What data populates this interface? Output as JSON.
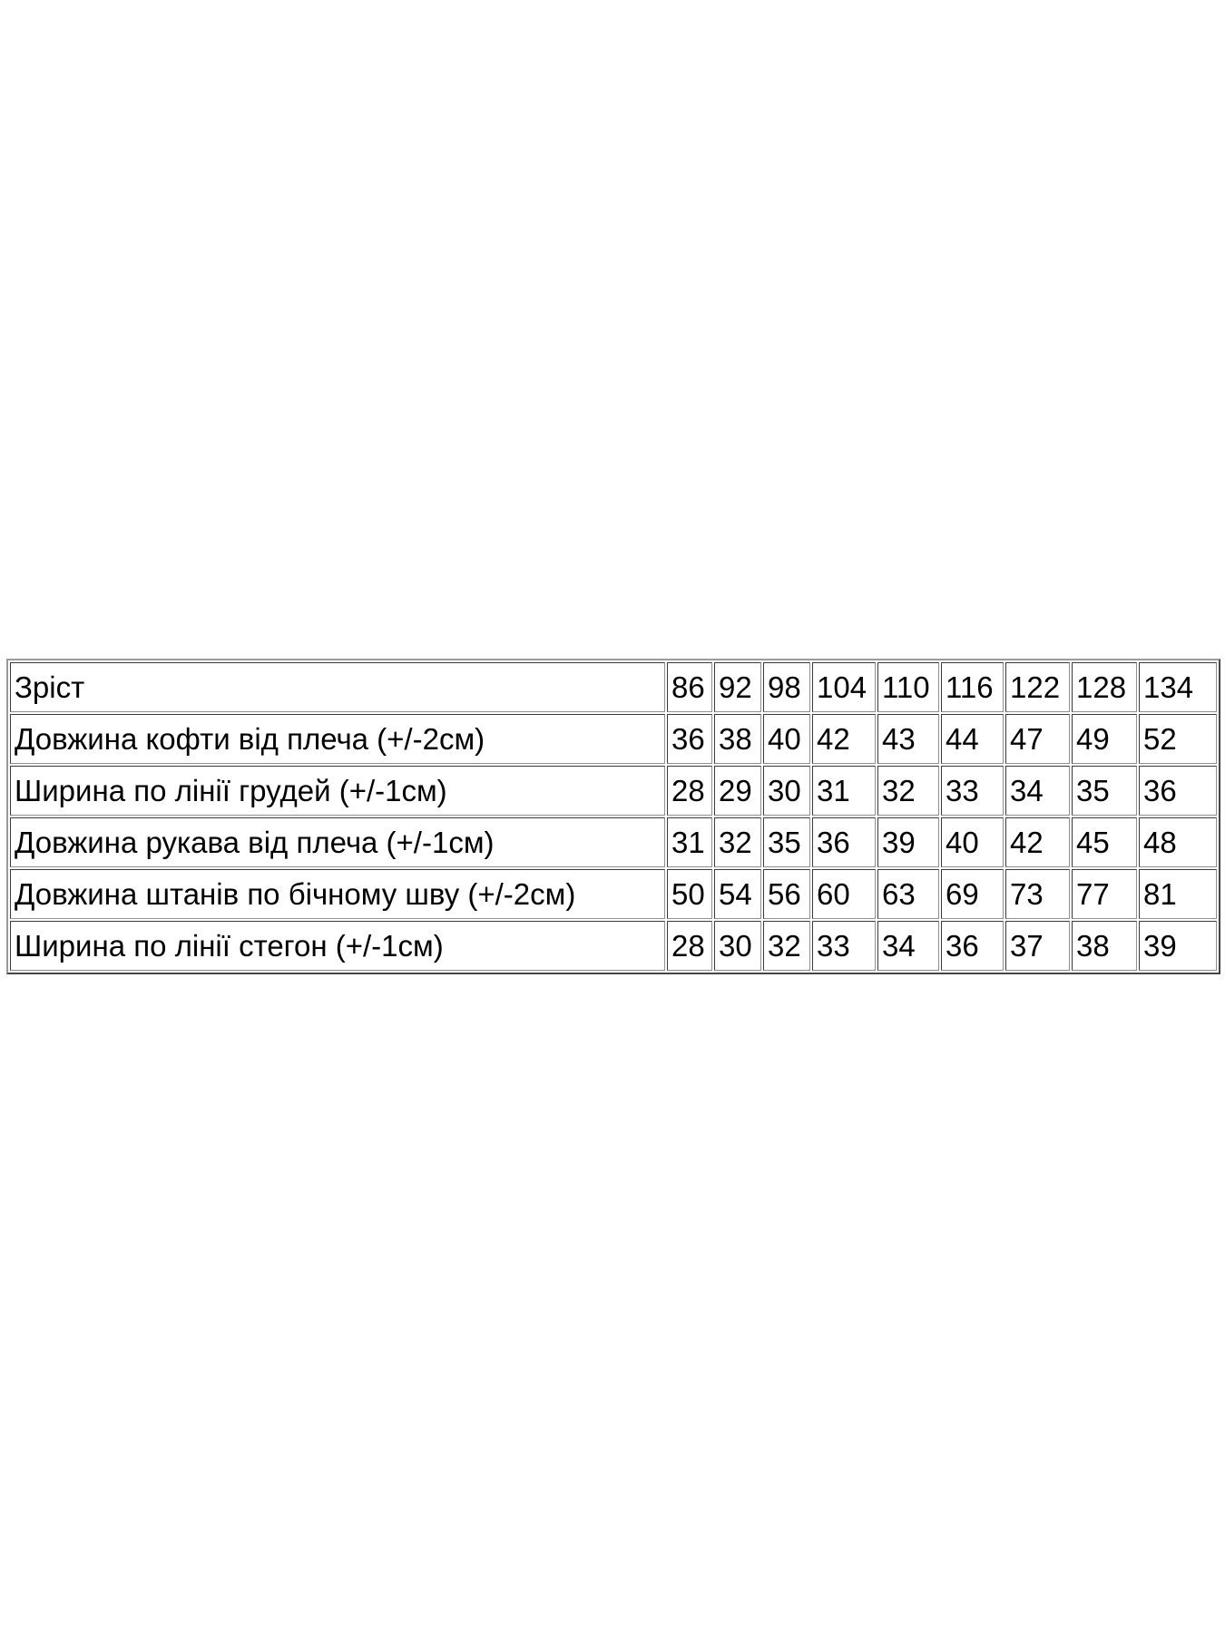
{
  "table": {
    "header": {
      "label": "Зріст",
      "sizes": [
        "86",
        "92",
        "98",
        "104",
        "110",
        "116",
        "122",
        "128",
        "134"
      ]
    },
    "rows": [
      {
        "label": "Довжина кофти від плеча (+/-2см)",
        "values": [
          "36",
          "38",
          "40",
          "42",
          "43",
          "44",
          "47",
          "49",
          "52"
        ]
      },
      {
        "label": "Ширина по лінії грудей (+/-1см)",
        "values": [
          "28",
          "29",
          "30",
          "31",
          "32",
          "33",
          "34",
          "35",
          "36"
        ]
      },
      {
        "label": "Довжина рукава від плеча (+/-1см)",
        "values": [
          "31",
          "32",
          "35",
          "36",
          "39",
          "40",
          "42",
          "45",
          "48"
        ]
      },
      {
        "label": "Довжина штанів по бічному шву (+/-2см)",
        "values": [
          "50",
          "54",
          "56",
          "60",
          "63",
          "69",
          "73",
          "77",
          "81"
        ]
      },
      {
        "label": "Ширина по лінії стегон (+/-1см)",
        "values": [
          "28",
          "30",
          "32",
          "33",
          "34",
          "36",
          "37",
          "38",
          "39"
        ]
      }
    ]
  },
  "layout_hints": {
    "column_count": 10,
    "row_count": 6
  },
  "colors": {
    "background": "#ffffff",
    "text": "#000000",
    "border_outer": "#9a9a9a",
    "border_cell": "#8f8f8f"
  }
}
